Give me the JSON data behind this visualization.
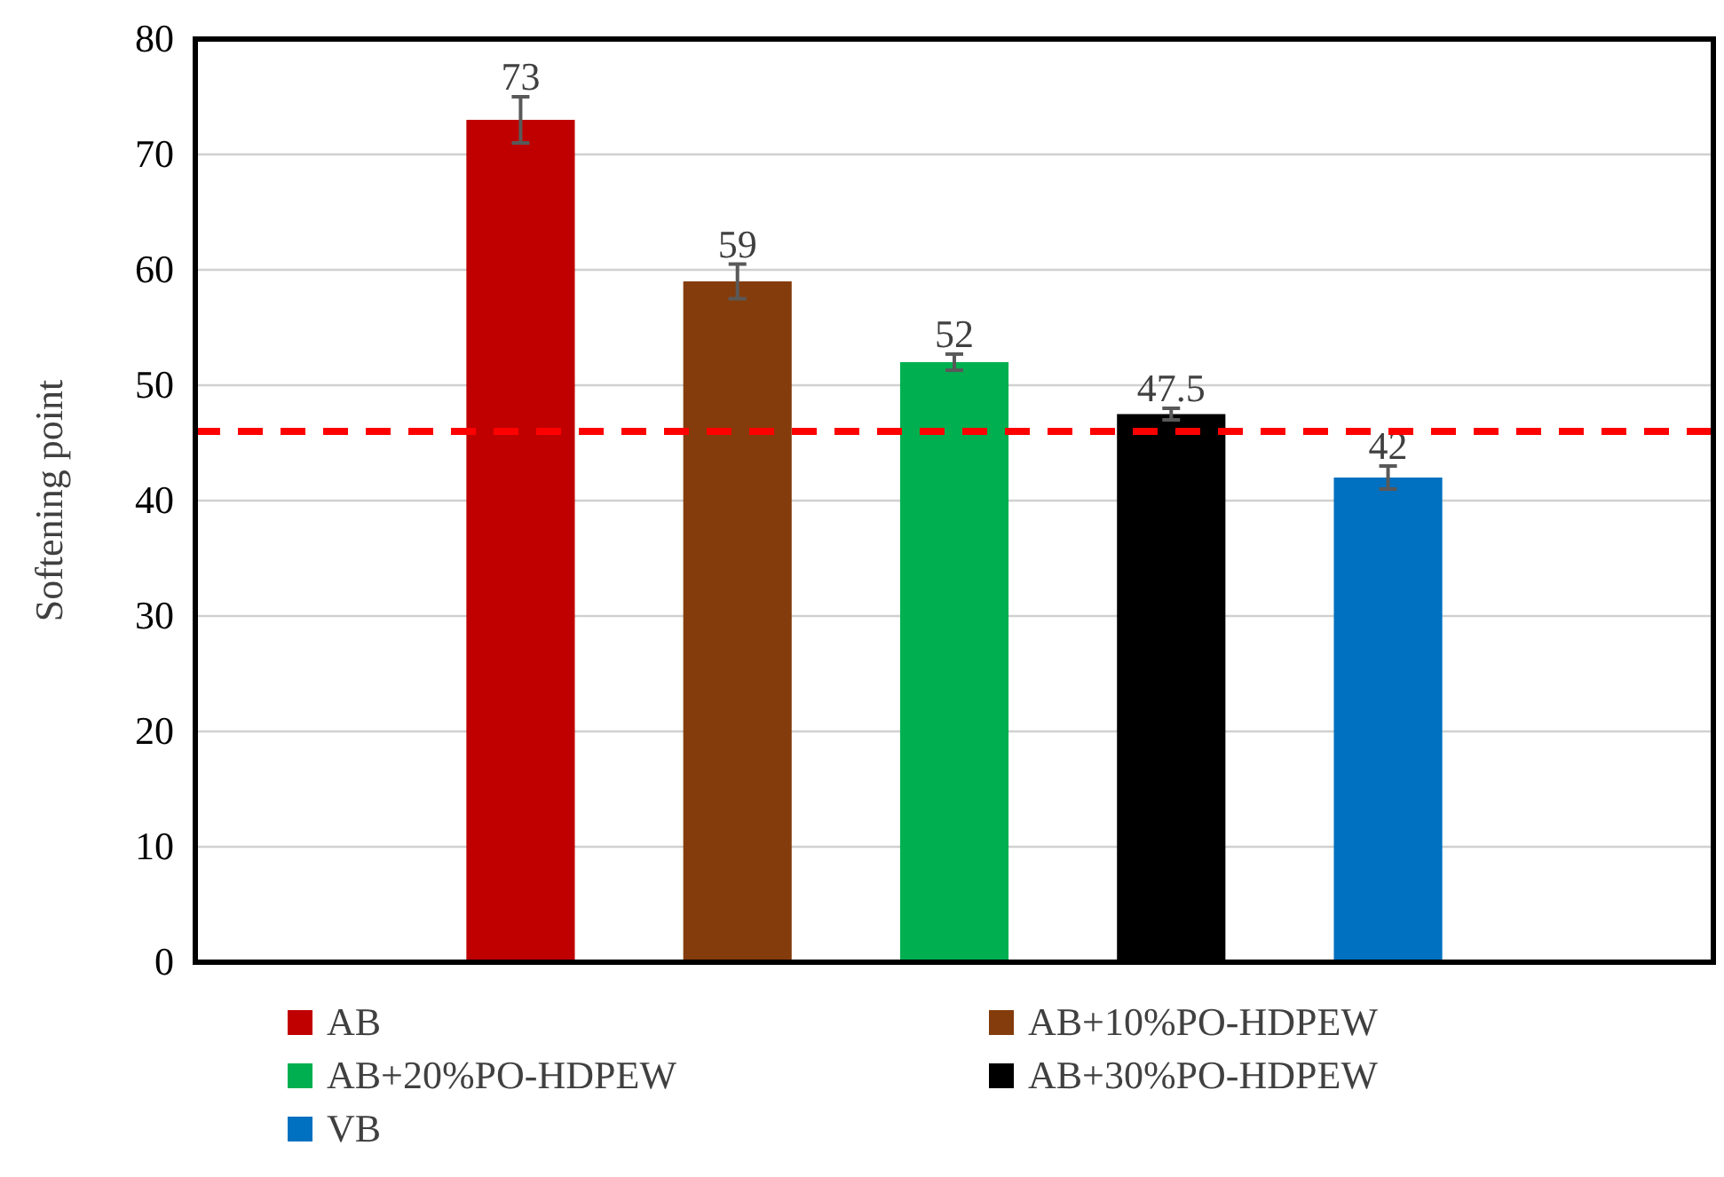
{
  "chart_data": {
    "type": "bar",
    "ylabel": "Softening point",
    "categories": [
      null
    ],
    "series": [
      {
        "name": "AB",
        "color": "#c00000",
        "values": [
          73
        ],
        "errors": [
          2
        ]
      },
      {
        "name": "AB+10%PO-HDPEW",
        "color": "#843c0c",
        "values": [
          59
        ],
        "errors": [
          1.5
        ]
      },
      {
        "name": "AB+20%PO-HDPEW",
        "color": "#00b050",
        "values": [
          52
        ],
        "errors": [
          0.7
        ]
      },
      {
        "name": "AB+30%PO-HDPEW",
        "color": "#000000",
        "values": [
          47.5
        ],
        "errors": [
          0.5
        ]
      },
      {
        "name": "VB",
        "color": "#0070c0",
        "values": [
          42
        ],
        "errors": [
          1
        ]
      }
    ],
    "ylim": [
      0,
      80
    ],
    "yticks": [
      0,
      10,
      20,
      30,
      40,
      50,
      60,
      70,
      80
    ],
    "grid": "y",
    "data_labels": true,
    "legend": "bottom",
    "ref_lines": [
      {
        "axis": "y",
        "value": 46,
        "color": "#ff0000",
        "line_style": "dashed"
      }
    ]
  }
}
